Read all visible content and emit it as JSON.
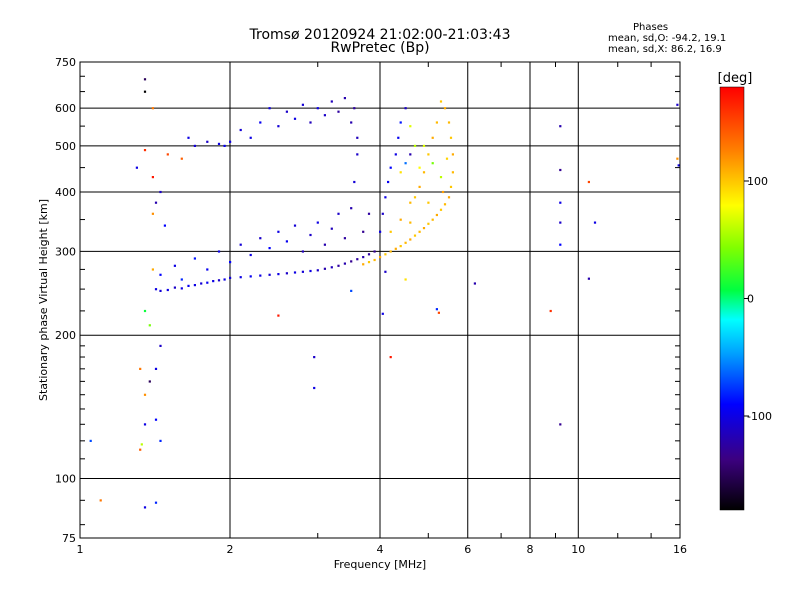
{
  "figure": {
    "title_line1": "Tromsø 20120924 21:02:00-21:03:43",
    "title_line2": "RwPretec (Bp)",
    "stats_header": "Phases",
    "stats_o": "mean, sd,O: -94.2, 19.1",
    "stats_x": "mean, sd,X:  86.2, 16.9"
  },
  "colorbar": {
    "label": "[deg]",
    "min": -180,
    "max": 180,
    "ticks": [
      {
        "value": 100,
        "label": "100"
      },
      {
        "value": 0,
        "label": "0"
      },
      {
        "value": -100,
        "label": "-100"
      }
    ]
  },
  "chart_data": {
    "type": "scatter",
    "xlabel": "Frequency [MHz]",
    "ylabel": "Stationary phase Virtual Height [km]",
    "xscale": "log",
    "yscale": "log",
    "xlim": [
      1,
      16
    ],
    "ylim": [
      75,
      750
    ],
    "grid": true,
    "xticks": [
      {
        "value": 1,
        "label": "1"
      },
      {
        "value": 2,
        "label": "2"
      },
      {
        "value": 4,
        "label": "4"
      },
      {
        "value": 6,
        "label": "6"
      },
      {
        "value": 8,
        "label": "8"
      },
      {
        "value": 10,
        "label": "10"
      },
      {
        "value": 16,
        "label": "16"
      }
    ],
    "yticks": [
      {
        "value": 75,
        "label": "75"
      },
      {
        "value": 100,
        "label": "100"
      },
      {
        "value": 200,
        "label": "200"
      },
      {
        "value": 300,
        "label": "300"
      },
      {
        "value": 400,
        "label": "400"
      },
      {
        "value": 500,
        "label": "500"
      },
      {
        "value": 600,
        "label": "600"
      },
      {
        "value": 750,
        "label": "750"
      }
    ],
    "points": [
      [
        1.42,
        250,
        -100
      ],
      [
        1.45,
        248,
        -105
      ],
      [
        1.5,
        249,
        -100
      ],
      [
        1.55,
        252,
        -110
      ],
      [
        1.6,
        251,
        -100
      ],
      [
        1.65,
        254,
        -95
      ],
      [
        1.7,
        255,
        -100
      ],
      [
        1.75,
        257,
        -105
      ],
      [
        1.8,
        258,
        -95
      ],
      [
        1.85,
        260,
        -100
      ],
      [
        1.9,
        261,
        -110
      ],
      [
        1.95,
        262,
        -100
      ],
      [
        2.0,
        264,
        -105
      ],
      [
        2.1,
        265,
        -100
      ],
      [
        2.2,
        266,
        -95
      ],
      [
        2.3,
        267,
        -100
      ],
      [
        2.4,
        268,
        -105
      ],
      [
        2.5,
        269,
        -100
      ],
      [
        2.6,
        270,
        -110
      ],
      [
        2.7,
        271,
        -100
      ],
      [
        2.8,
        272,
        -105
      ],
      [
        2.9,
        273,
        -100
      ],
      [
        3.0,
        274,
        -110
      ],
      [
        3.1,
        276,
        -120
      ],
      [
        3.2,
        278,
        -115
      ],
      [
        3.3,
        280,
        -125
      ],
      [
        3.4,
        283,
        -120
      ],
      [
        3.5,
        286,
        -130
      ],
      [
        3.6,
        289,
        -125
      ],
      [
        3.7,
        292,
        -120
      ],
      [
        3.8,
        296,
        -125
      ],
      [
        1.45,
        268,
        -90
      ],
      [
        1.55,
        280,
        -100
      ],
      [
        1.6,
        262,
        -80
      ],
      [
        1.7,
        290,
        -85
      ],
      [
        1.8,
        275,
        -95
      ],
      [
        1.9,
        300,
        -100
      ],
      [
        2.0,
        285,
        -90
      ],
      [
        2.1,
        310,
        -105
      ],
      [
        2.2,
        295,
        -100
      ],
      [
        2.3,
        320,
        -110
      ],
      [
        2.4,
        305,
        -90
      ],
      [
        2.5,
        330,
        -100
      ],
      [
        2.6,
        315,
        -95
      ],
      [
        2.7,
        340,
        -105
      ],
      [
        2.8,
        300,
        -115
      ],
      [
        2.9,
        325,
        -110
      ],
      [
        3.0,
        345,
        -100
      ],
      [
        3.1,
        310,
        -120
      ],
      [
        3.2,
        335,
        -115
      ],
      [
        3.3,
        360,
        -110
      ],
      [
        3.4,
        320,
        -125
      ],
      [
        3.5,
        370,
        -120
      ],
      [
        3.55,
        420,
        -105
      ],
      [
        3.6,
        480,
        -110
      ],
      [
        3.6,
        520,
        -115
      ],
      [
        3.5,
        560,
        -120
      ],
      [
        3.55,
        600,
        -125
      ],
      [
        3.4,
        630,
        -120
      ],
      [
        3.3,
        590,
        -125
      ],
      [
        3.2,
        620,
        -115
      ],
      [
        3.1,
        580,
        -110
      ],
      [
        3.0,
        600,
        -100
      ],
      [
        2.9,
        560,
        -115
      ],
      [
        2.8,
        610,
        -105
      ],
      [
        2.7,
        570,
        -100
      ],
      [
        2.6,
        590,
        -110
      ],
      [
        2.5,
        550,
        -105
      ],
      [
        2.4,
        600,
        -100
      ],
      [
        2.3,
        560,
        -95
      ],
      [
        2.2,
        520,
        -100
      ],
      [
        2.1,
        540,
        -105
      ],
      [
        2.0,
        510,
        -100
      ],
      [
        1.95,
        500,
        -95
      ],
      [
        1.9,
        505,
        -100
      ],
      [
        1.8,
        510,
        -110
      ],
      [
        1.7,
        500,
        -105
      ],
      [
        1.65,
        520,
        -100
      ],
      [
        3.7,
        330,
        -130
      ],
      [
        3.8,
        360,
        -125
      ],
      [
        3.9,
        300,
        -130
      ],
      [
        4.0,
        330,
        -100
      ],
      [
        4.05,
        360,
        -110
      ],
      [
        4.1,
        390,
        -100
      ],
      [
        4.15,
        420,
        -95
      ],
      [
        4.2,
        450,
        -90
      ],
      [
        4.3,
        480,
        -100
      ],
      [
        4.35,
        520,
        -95
      ],
      [
        4.4,
        560,
        -85
      ],
      [
        4.5,
        600,
        -110
      ],
      [
        4.6,
        550,
        70
      ],
      [
        4.7,
        500,
        60
      ],
      [
        4.6,
        480,
        -120
      ],
      [
        4.5,
        460,
        -60
      ],
      [
        4.4,
        440,
        90
      ],
      [
        4.8,
        450,
        80
      ],
      [
        3.7,
        282,
        110
      ],
      [
        3.8,
        285,
        100
      ],
      [
        3.9,
        288,
        105
      ],
      [
        4.0,
        292,
        110
      ],
      [
        4.1,
        296,
        100
      ],
      [
        4.2,
        300,
        105
      ],
      [
        4.3,
        304,
        110
      ],
      [
        4.4,
        308,
        100
      ],
      [
        4.5,
        313,
        105
      ],
      [
        4.6,
        318,
        110
      ],
      [
        4.7,
        324,
        100
      ],
      [
        4.8,
        330,
        105
      ],
      [
        4.9,
        336,
        110
      ],
      [
        5.0,
        343,
        100
      ],
      [
        5.1,
        350,
        105
      ],
      [
        5.2,
        358,
        110
      ],
      [
        5.3,
        367,
        100
      ],
      [
        5.4,
        377,
        105
      ],
      [
        5.5,
        390,
        110
      ],
      [
        5.55,
        410,
        100
      ],
      [
        5.6,
        440,
        105
      ],
      [
        5.6,
        480,
        110
      ],
      [
        5.55,
        520,
        100
      ],
      [
        5.5,
        560,
        105
      ],
      [
        5.4,
        600,
        110
      ],
      [
        5.3,
        620,
        100
      ],
      [
        5.2,
        560,
        105
      ],
      [
        5.1,
        520,
        110
      ],
      [
        5.0,
        480,
        100
      ],
      [
        4.9,
        440,
        105
      ],
      [
        4.8,
        410,
        110
      ],
      [
        4.7,
        390,
        100
      ],
      [
        4.6,
        380,
        105
      ],
      [
        5.3,
        430,
        60
      ],
      [
        5.1,
        460,
        40
      ],
      [
        4.9,
        500,
        70
      ],
      [
        5.45,
        470,
        95
      ],
      [
        5.35,
        400,
        115
      ],
      [
        4.2,
        330,
        100
      ],
      [
        4.4,
        350,
        110
      ],
      [
        4.6,
        345,
        105
      ],
      [
        5.0,
        380,
        100
      ],
      [
        1.35,
        690,
        -150
      ],
      [
        1.35,
        650,
        -180
      ],
      [
        1.4,
        600,
        130
      ],
      [
        1.3,
        450,
        -100
      ],
      [
        1.35,
        490,
        160
      ],
      [
        1.4,
        430,
        170
      ],
      [
        1.45,
        400,
        -110
      ],
      [
        1.5,
        480,
        150
      ],
      [
        1.6,
        470,
        140
      ],
      [
        1.42,
        380,
        -120
      ],
      [
        1.48,
        340,
        -90
      ],
      [
        1.4,
        360,
        120
      ],
      [
        1.4,
        275,
        110
      ],
      [
        1.35,
        225,
        10
      ],
      [
        1.38,
        210,
        40
      ],
      [
        1.35,
        150,
        120
      ],
      [
        1.32,
        170,
        130
      ],
      [
        1.45,
        190,
        -110
      ],
      [
        1.42,
        170,
        -100
      ],
      [
        1.38,
        160,
        -150
      ],
      [
        1.35,
        130,
        -100
      ],
      [
        1.42,
        133,
        -90
      ],
      [
        1.45,
        120,
        -80
      ],
      [
        1.33,
        118,
        60
      ],
      [
        1.32,
        115,
        140
      ],
      [
        1.05,
        120,
        -70
      ],
      [
        1.1,
        90,
        130
      ],
      [
        1.35,
        87,
        -100
      ],
      [
        1.42,
        89,
        -80
      ],
      [
        2.5,
        220,
        170
      ],
      [
        2.95,
        180,
        -110
      ],
      [
        2.95,
        155,
        -100
      ],
      [
        3.5,
        248,
        -70
      ],
      [
        4.05,
        222,
        -100
      ],
      [
        4.1,
        272,
        -110
      ],
      [
        4.2,
        180,
        170
      ],
      [
        4.5,
        262,
        90
      ],
      [
        5.2,
        227,
        -80
      ],
      [
        5.25,
        223,
        150
      ],
      [
        6.2,
        257,
        -120
      ],
      [
        8.8,
        225,
        160
      ],
      [
        9.2,
        550,
        -120
      ],
      [
        9.2,
        445,
        -130
      ],
      [
        9.2,
        380,
        -100
      ],
      [
        9.2,
        345,
        -110
      ],
      [
        9.2,
        310,
        -90
      ],
      [
        9.2,
        130,
        -130
      ],
      [
        10.5,
        420,
        150
      ],
      [
        10.8,
        345,
        -100
      ],
      [
        10.5,
        263,
        -120
      ],
      [
        15.8,
        610,
        -110
      ],
      [
        15.8,
        470,
        120
      ],
      [
        15.9,
        455,
        -100
      ]
    ]
  }
}
